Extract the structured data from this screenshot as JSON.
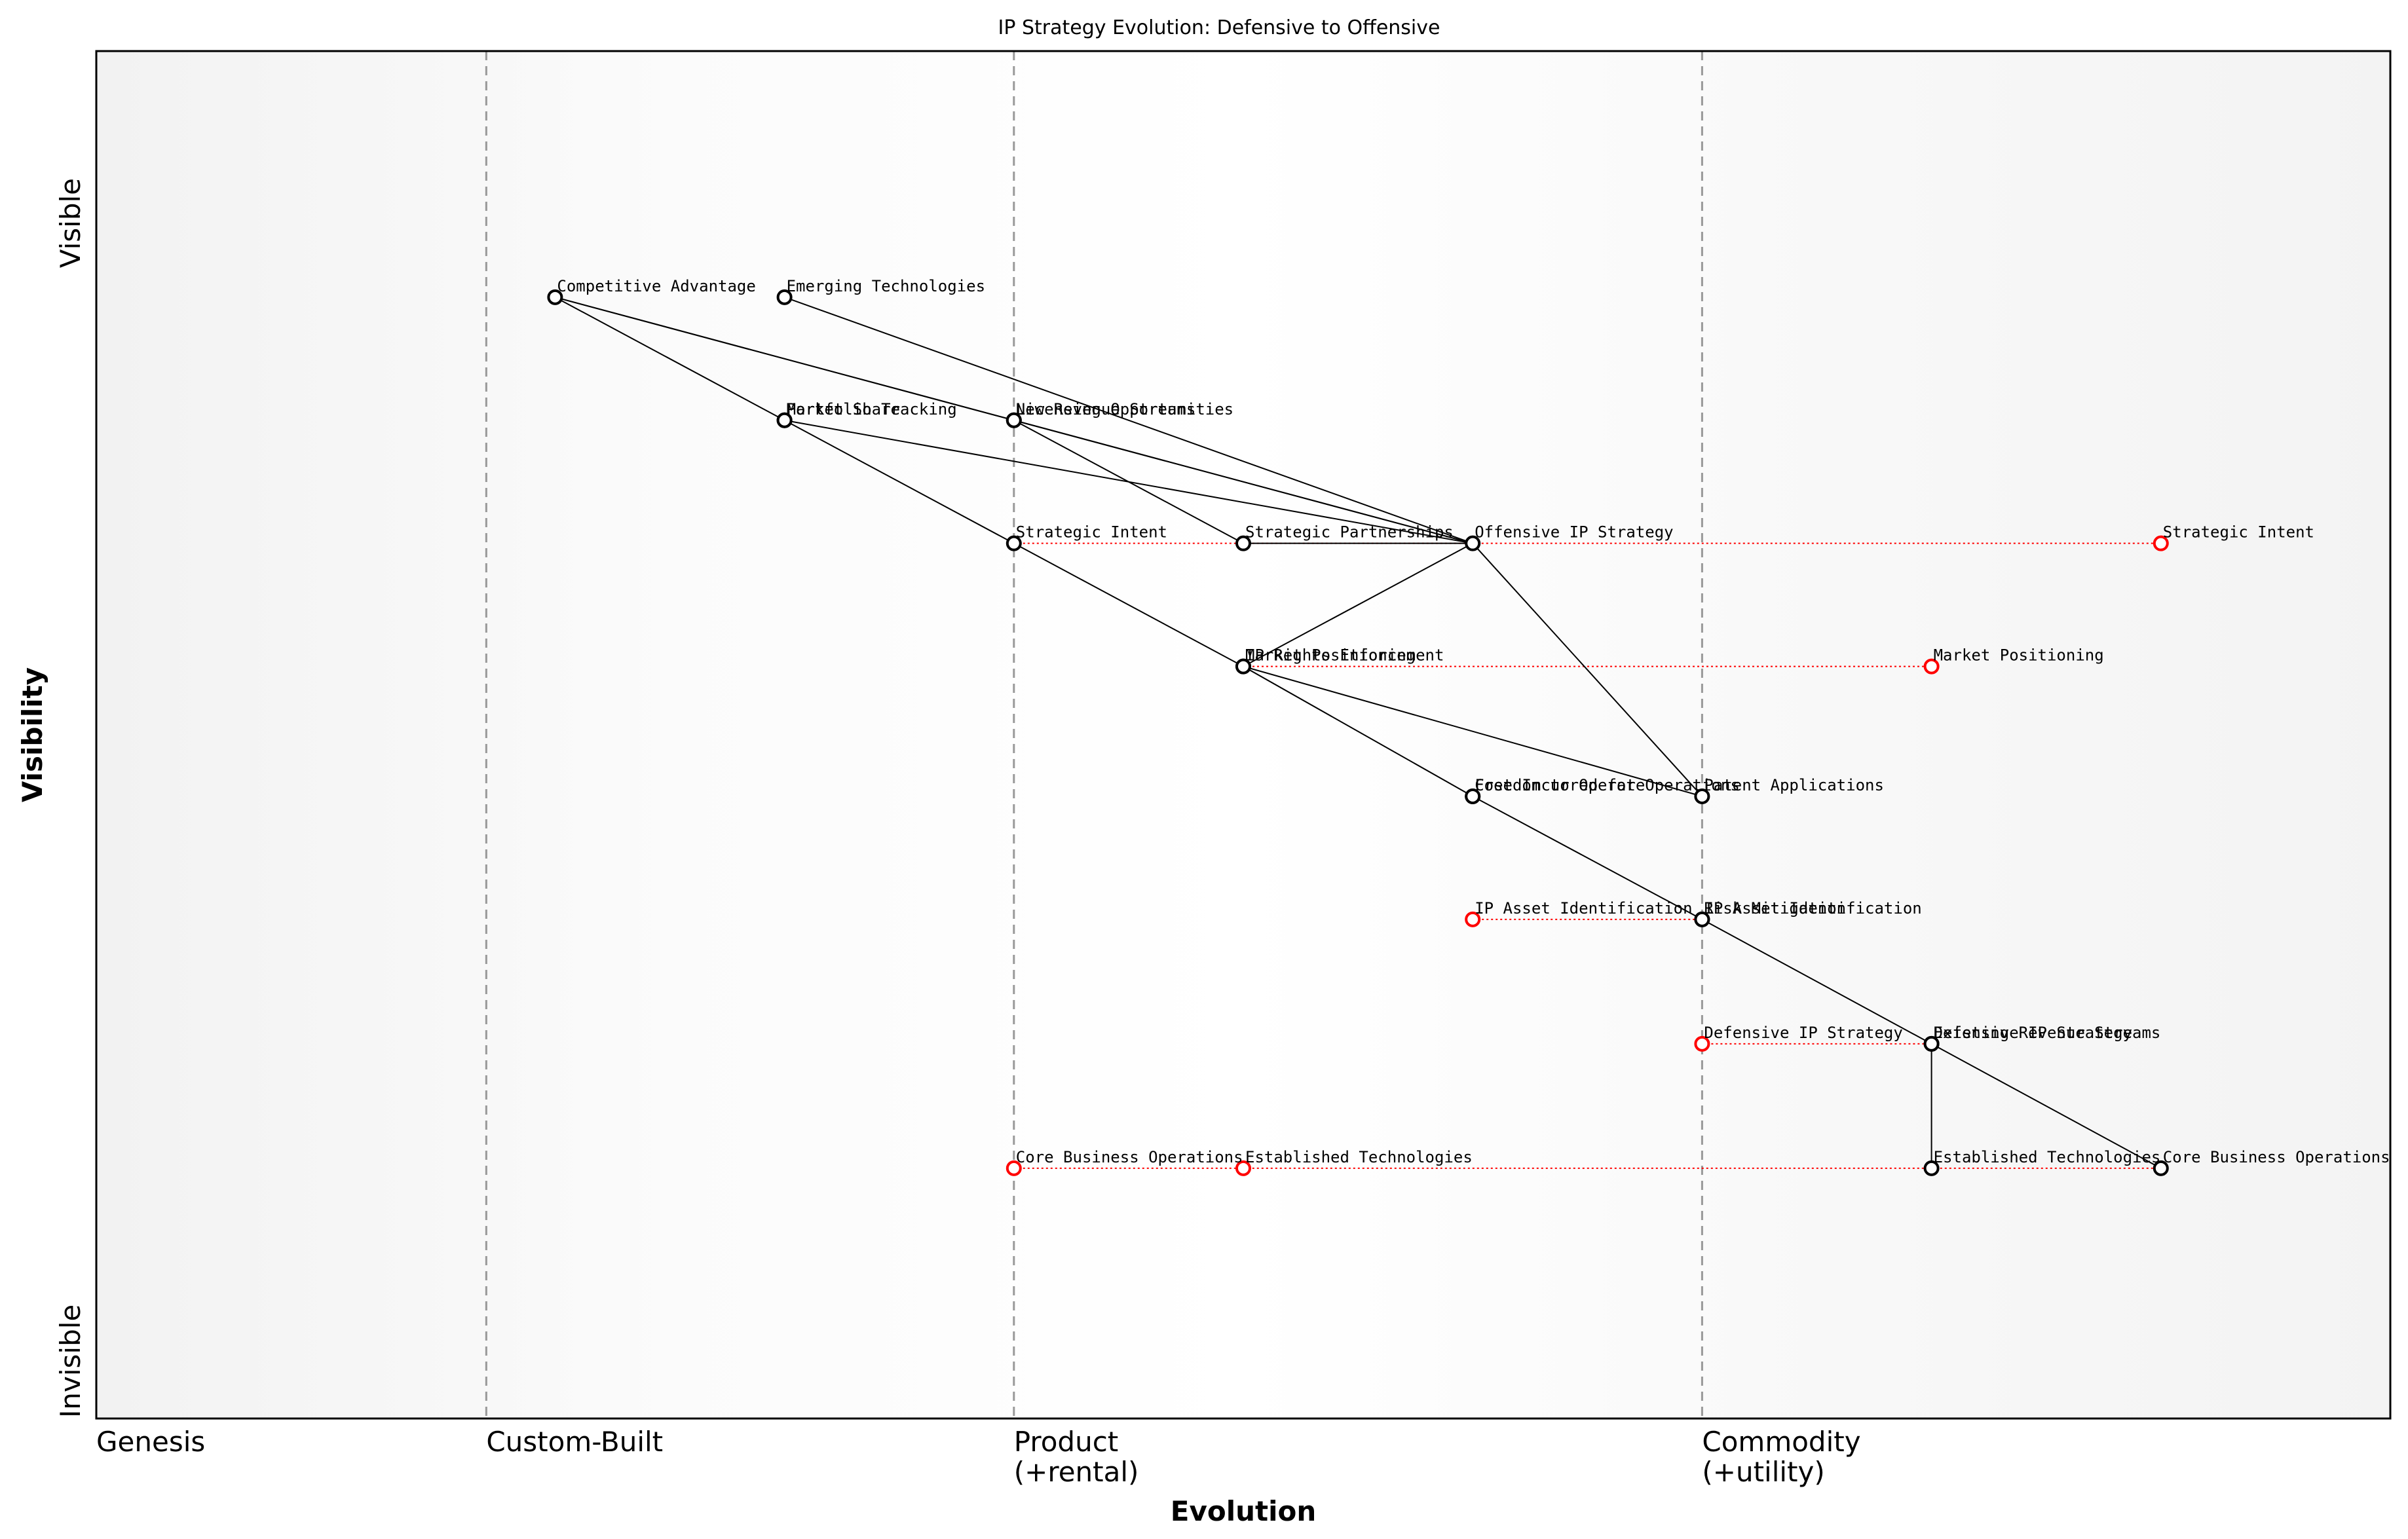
{
  "title": "IP Strategy Evolution: Defensive to Offensive",
  "axes": {
    "x_label": "Evolution",
    "y_label": "Visibility",
    "y_top": "Visible",
    "y_bottom": "Invisible",
    "stages": [
      {
        "name": "Genesis",
        "sub": "",
        "at": 0.0
      },
      {
        "name": "Custom-Built",
        "sub": "",
        "at": 0.17
      },
      {
        "name": "Product",
        "sub": "(+rental)",
        "at": 0.4
      },
      {
        "name": "Commodity",
        "sub": "(+utility)",
        "at": 0.7
      }
    ]
  },
  "colors": {
    "node": "#000000",
    "future_node": "#ff0000",
    "movement_line": "#ff0000",
    "divider": "#999999"
  },
  "components": [
    {
      "id": "competitive-advantage",
      "label": "Competitive Advantage",
      "evolution": 0.2,
      "visibility": 0.82,
      "future": false
    },
    {
      "id": "emerging-technologies",
      "label": "Emerging Technologies",
      "evolution": 0.3,
      "visibility": 0.82,
      "future": false
    },
    {
      "id": "market-share",
      "label": "Market Share",
      "evolution": 0.3,
      "visibility": 0.73,
      "future": false
    },
    {
      "id": "portfolio-tracking",
      "label": "Portfolio Tracking",
      "evolution": 0.3,
      "visibility": 0.73,
      "future": false
    },
    {
      "id": "new-revenue-streams",
      "label": "New Revenue Streams",
      "evolution": 0.4,
      "visibility": 0.73,
      "future": false
    },
    {
      "id": "licensing-opportunities",
      "label": "Licensing Opportunities",
      "evolution": 0.4,
      "visibility": 0.73,
      "future": false
    },
    {
      "id": "strategic-intent",
      "label": "Strategic Intent",
      "evolution": 0.4,
      "visibility": 0.64,
      "future": false
    },
    {
      "id": "strategic-partnerships",
      "label": "Strategic Partnerships",
      "evolution": 0.5,
      "visibility": 0.64,
      "future": false
    },
    {
      "id": "offensive-ip-strategy",
      "label": "Offensive IP Strategy",
      "evolution": 0.6,
      "visibility": 0.64,
      "future": false
    },
    {
      "id": "strategic-intent-future",
      "label": "Strategic Intent",
      "evolution": 0.9,
      "visibility": 0.64,
      "future": true
    },
    {
      "id": "ip-rights-enforcement",
      "label": "IP Rights Enforcement",
      "evolution": 0.5,
      "visibility": 0.55,
      "future": false
    },
    {
      "id": "market-positioning",
      "label": "Market Positioning",
      "evolution": 0.5,
      "visibility": 0.55,
      "future": false
    },
    {
      "id": "market-positioning-future",
      "label": "Market Positioning",
      "evolution": 0.8,
      "visibility": 0.55,
      "future": true
    },
    {
      "id": "freedom-to-operate",
      "label": "Freedom to Operate",
      "evolution": 0.6,
      "visibility": 0.455,
      "future": false
    },
    {
      "id": "cost-incurred-for-operations",
      "label": "Cost Incurred for Operations",
      "evolution": 0.6,
      "visibility": 0.455,
      "future": false
    },
    {
      "id": "patent-applications",
      "label": "Patent Applications",
      "evolution": 0.7,
      "visibility": 0.455,
      "future": false
    },
    {
      "id": "ip-asset-identification-future",
      "label": "IP Asset Identification",
      "evolution": 0.6,
      "visibility": 0.365,
      "future": true
    },
    {
      "id": "risk-mitigation",
      "label": "Risk Mitigation",
      "evolution": 0.7,
      "visibility": 0.365,
      "future": false
    },
    {
      "id": "ip-asset-identification",
      "label": "IP Asset Identification",
      "evolution": 0.7,
      "visibility": 0.365,
      "future": false
    },
    {
      "id": "defensive-ip-strategy-future",
      "label": "Defensive IP Strategy",
      "evolution": 0.7,
      "visibility": 0.274,
      "future": true
    },
    {
      "id": "defensive-ip-strategy",
      "label": "Defensive IP Strategy",
      "evolution": 0.8,
      "visibility": 0.274,
      "future": false
    },
    {
      "id": "existing-revenue-streams",
      "label": "Existing Revenue Streams",
      "evolution": 0.8,
      "visibility": 0.274,
      "future": false
    },
    {
      "id": "core-business-operations-future",
      "label": "Core Business Operations",
      "evolution": 0.4,
      "visibility": 0.183,
      "future": true
    },
    {
      "id": "established-technologies-future",
      "label": "Established Technologies",
      "evolution": 0.5,
      "visibility": 0.183,
      "future": true
    },
    {
      "id": "established-technologies",
      "label": "Established Technologies",
      "evolution": 0.8,
      "visibility": 0.183,
      "future": false
    },
    {
      "id": "core-business-operations",
      "label": "Core Business Operations",
      "evolution": 0.9,
      "visibility": 0.183,
      "future": false
    }
  ],
  "links": [
    [
      "competitive-advantage",
      "market-share"
    ],
    [
      "competitive-advantage",
      "new-revenue-streams"
    ],
    [
      "competitive-advantage",
      "offensive-ip-strategy"
    ],
    [
      "emerging-technologies",
      "offensive-ip-strategy"
    ],
    [
      "market-share",
      "strategic-intent"
    ],
    [
      "market-share",
      "offensive-ip-strategy"
    ],
    [
      "new-revenue-streams",
      "offensive-ip-strategy"
    ],
    [
      "new-revenue-streams",
      "strategic-partnerships"
    ],
    [
      "strategic-intent",
      "ip-rights-enforcement"
    ],
    [
      "strategic-partnerships",
      "offensive-ip-strategy"
    ],
    [
      "offensive-ip-strategy",
      "ip-rights-enforcement"
    ],
    [
      "offensive-ip-strategy",
      "patent-applications"
    ],
    [
      "ip-rights-enforcement",
      "freedom-to-operate"
    ],
    [
      "ip-rights-enforcement",
      "patent-applications"
    ],
    [
      "freedom-to-operate",
      "risk-mitigation"
    ],
    [
      "risk-mitigation",
      "defensive-ip-strategy"
    ],
    [
      "defensive-ip-strategy",
      "core-business-operations"
    ],
    [
      "defensive-ip-strategy",
      "established-technologies"
    ]
  ],
  "movements": [
    [
      "strategic-intent",
      "strategic-intent-future"
    ],
    [
      "market-positioning",
      "market-positioning-future"
    ],
    [
      "ip-asset-identification-future",
      "ip-asset-identification"
    ],
    [
      "defensive-ip-strategy-future",
      "defensive-ip-strategy"
    ],
    [
      "core-business-operations-future",
      "core-business-operations"
    ]
  ]
}
